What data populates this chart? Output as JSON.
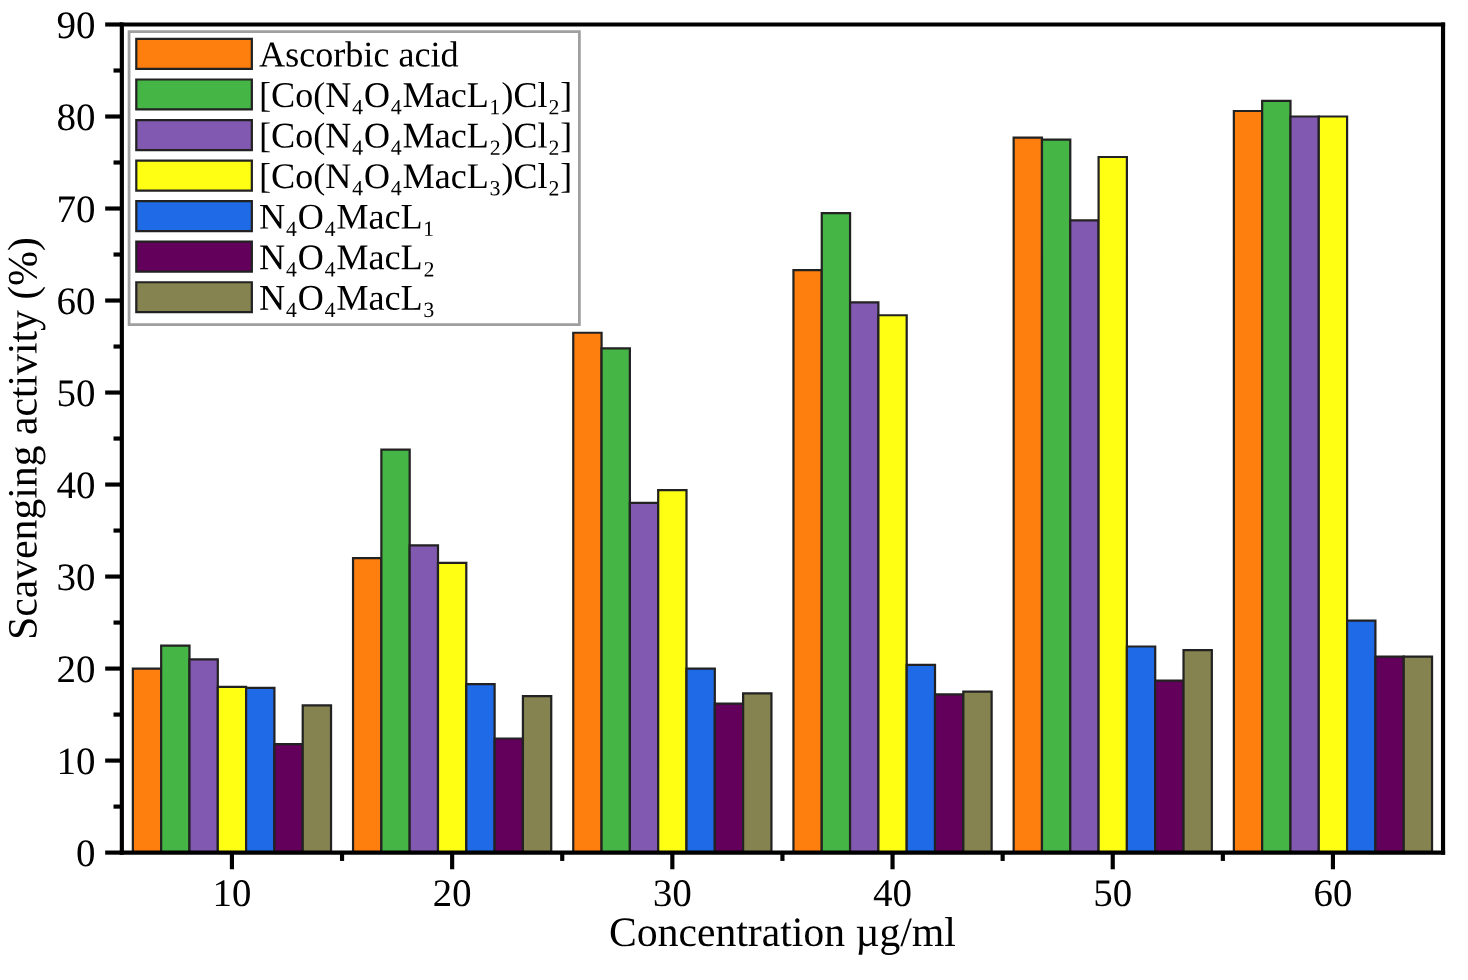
{
  "chart_data": {
    "type": "bar",
    "xlabel": "Concentration µg/ml",
    "ylabel": "Scavenging activity (%)",
    "categories": [
      "10",
      "20",
      "30",
      "40",
      "50",
      "60"
    ],
    "series": [
      {
        "name": "Ascorbic acid",
        "color": "#ff7f0e",
        "values": [
          20,
          32,
          56.5,
          63.3,
          77.7,
          80.6
        ]
      },
      {
        "name": "[Co(N₄O₄MacL₁)Cl₂]",
        "color": "#45b545",
        "values": [
          22.5,
          43.8,
          54.8,
          69.5,
          77.5,
          81.7
        ]
      },
      {
        "name": "[Co(N₄O₄MacL₂)Cl₂]",
        "color": "#8259b0",
        "values": [
          21,
          33.4,
          38,
          59.8,
          68.7,
          80
        ]
      },
      {
        "name": "[Co(N₄O₄MacL₃)Cl₂]",
        "color": "#ffff14",
        "values": [
          18,
          31.5,
          39.4,
          58.4,
          75.6,
          80
        ]
      },
      {
        "name": "N₄O₄MacL₁",
        "color": "#1f6ae6",
        "values": [
          17.9,
          18.3,
          20,
          20.4,
          22.4,
          25.2
        ]
      },
      {
        "name": "N₄O₄MacL₂",
        "color": "#62005c",
        "values": [
          11.8,
          12.4,
          16.2,
          17.2,
          18.7,
          21.3
        ]
      },
      {
        "name": "N₄O₄MacL₃",
        "color": "#85834f",
        "values": [
          16,
          17,
          17.3,
          17.5,
          22,
          21.3
        ]
      }
    ],
    "ylim": [
      0,
      90
    ],
    "yticks": [
      0,
      10,
      20,
      30,
      40,
      50,
      60,
      70,
      80,
      90
    ],
    "grid": false,
    "legend": "top left"
  }
}
